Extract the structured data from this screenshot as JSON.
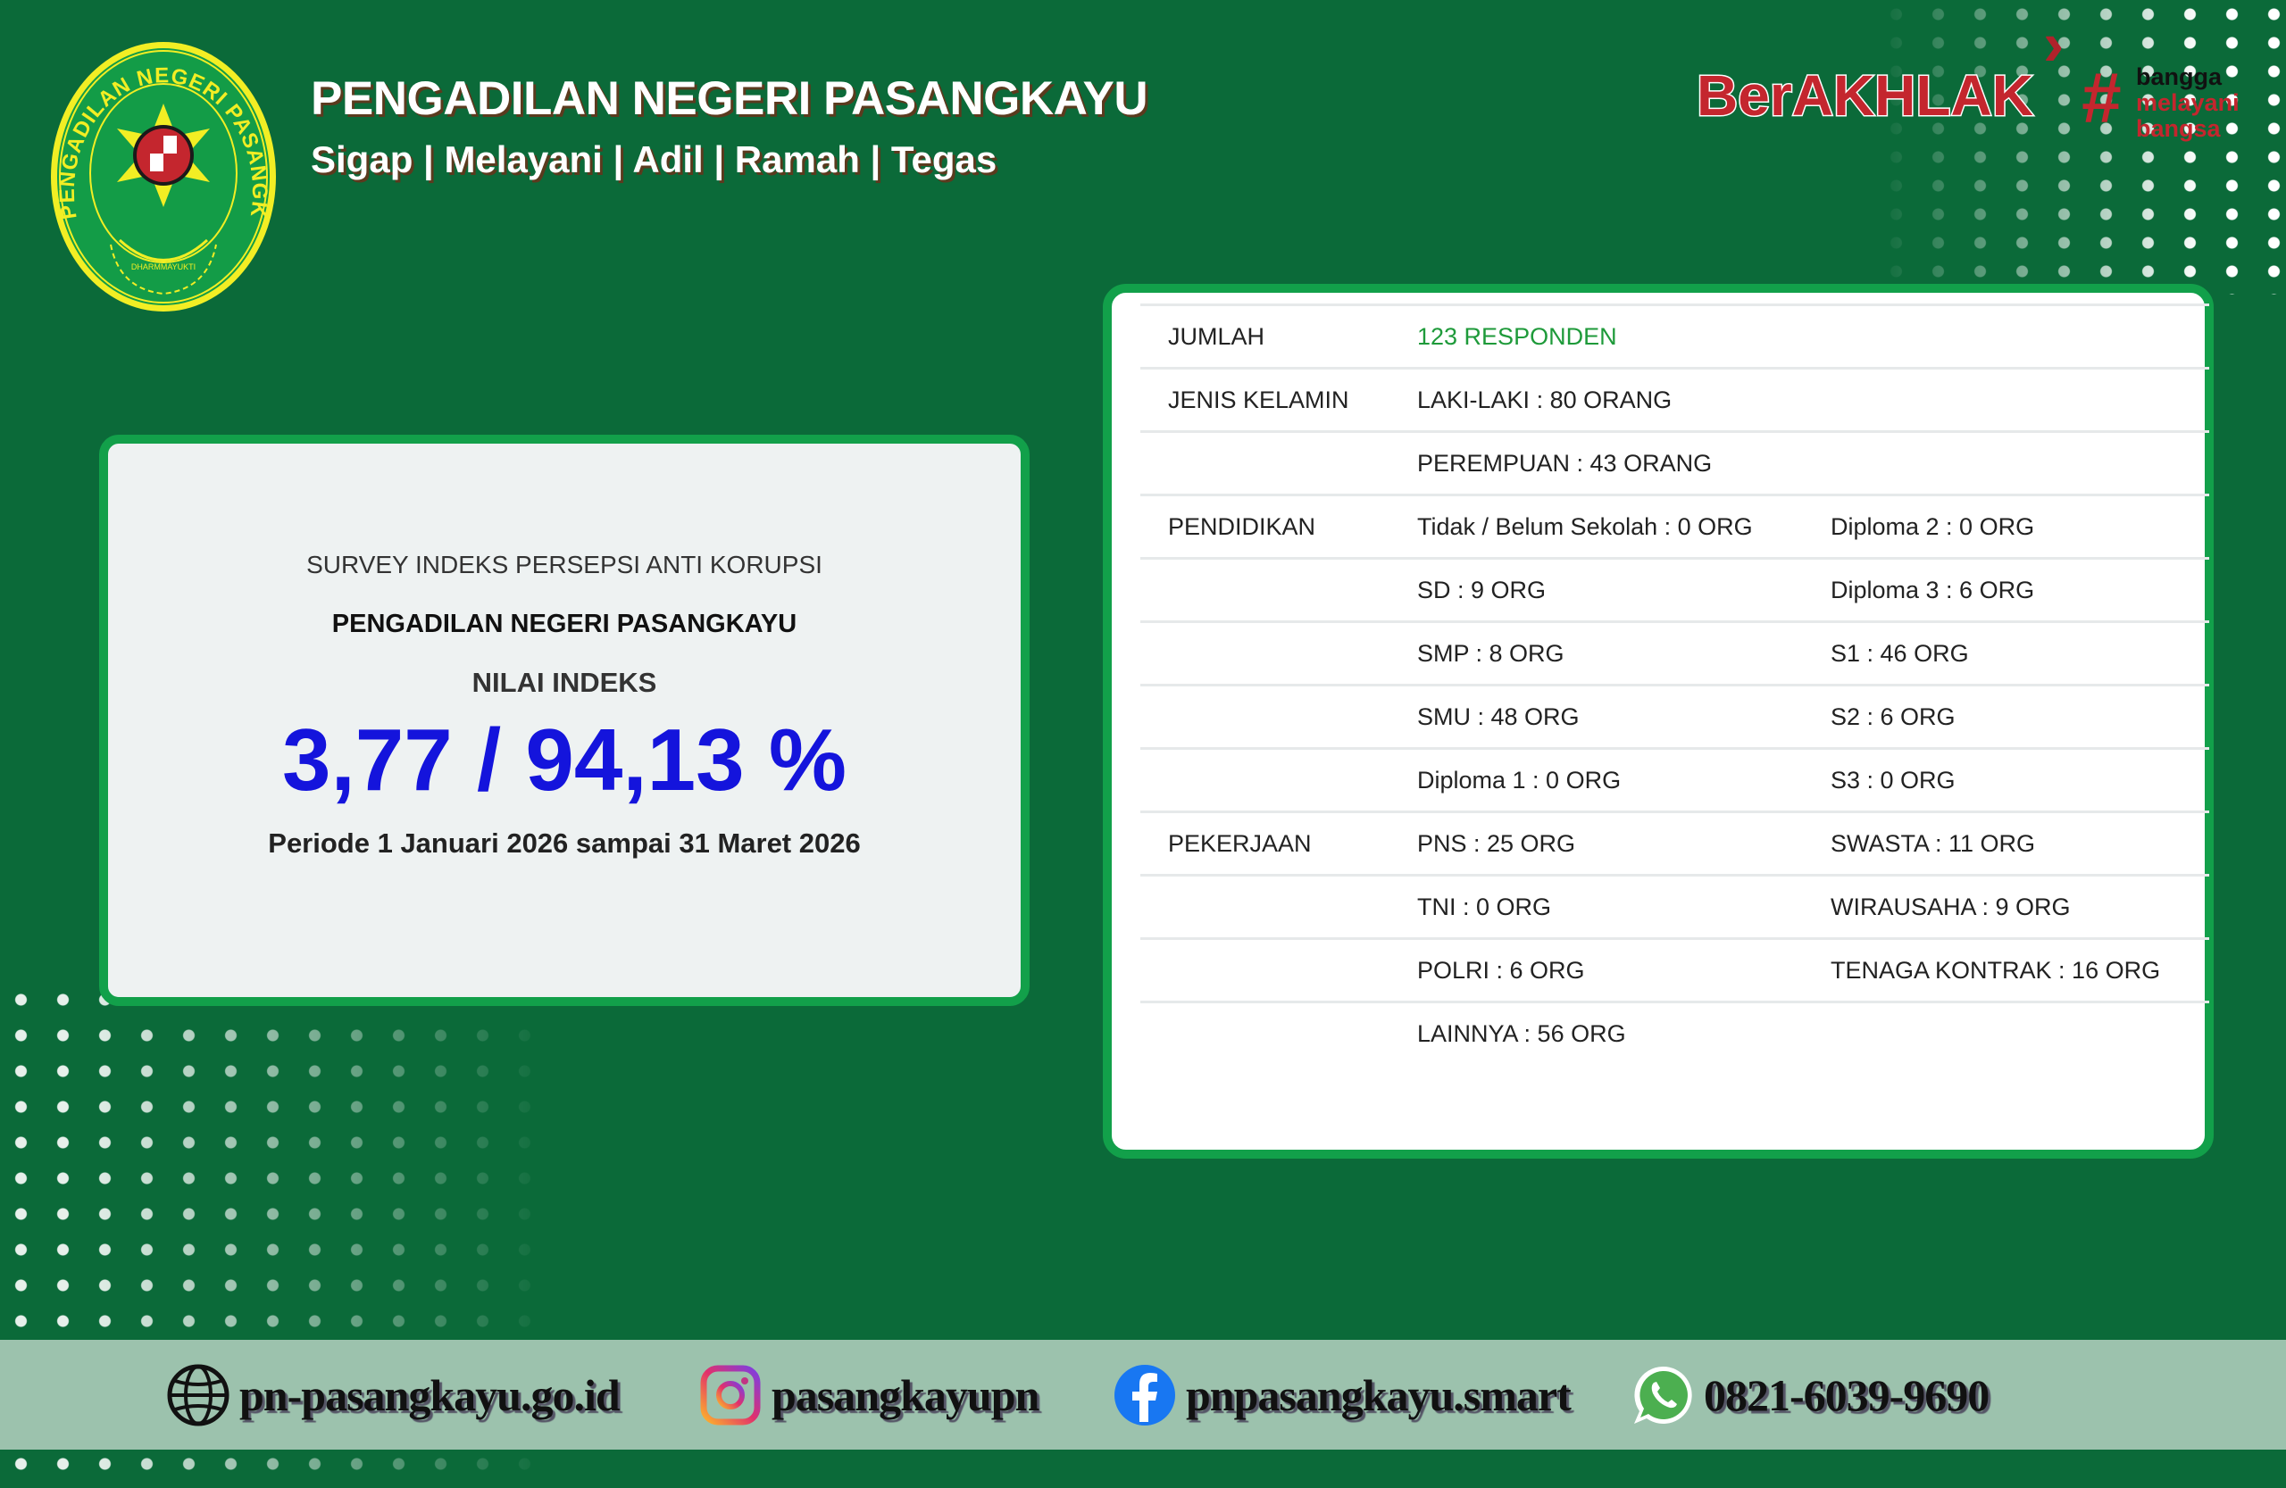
{
  "header": {
    "logo_text": "PENGADILAN NEGERI PASANGKAYU",
    "logo_motto": "DHARMMAYUKTI",
    "title": "PENGADILAN NEGERI PASANGKAYU",
    "subtitle": "Sigap | Melayani | Adil | Ramah | Tegas",
    "brand": "BerAKHLAK",
    "brand_tagline": [
      "bangga",
      "melayani",
      "bangsa"
    ],
    "brand_hash": "#"
  },
  "summary": {
    "survey_title": "SURVEY INDEKS PERSEPSI ANTI KORUPSI",
    "organization": "PENGADILAN NEGERI PASANGKAYU",
    "index_label": "NILAI INDEKS",
    "index_value": "3,77 / 94,13 %",
    "period": "Periode 1 Januari 2026 sampai 31 Maret 2026"
  },
  "respondents": {
    "rows": [
      [
        "JUMLAH",
        "123 RESPONDEN",
        ""
      ],
      [
        "JENIS KELAMIN",
        "LAKI-LAKI : 80 ORANG",
        ""
      ],
      [
        "",
        "PEREMPUAN : 43 ORANG",
        ""
      ],
      [
        "PENDIDIKAN",
        "Tidak / Belum Sekolah : 0 ORG",
        "Diploma 2 : 0 ORG"
      ],
      [
        "",
        "SD : 9 ORG",
        "Diploma 3 : 6 ORG"
      ],
      [
        "",
        "SMP : 8 ORG",
        "S1 : 46 ORG"
      ],
      [
        "",
        "SMU : 48 ORG",
        "S2 : 6 ORG"
      ],
      [
        "",
        "Diploma 1 : 0 ORG",
        "S3 : 0 ORG"
      ],
      [
        "PEKERJAAN",
        "PNS : 25 ORG",
        "SWASTA : 11 ORG"
      ],
      [
        "",
        "TNI : 0 ORG",
        "WIRAUSAHA : 9 ORG"
      ],
      [
        "",
        "POLRI : 6 ORG",
        "TENAGA KONTRAK : 16 ORG"
      ],
      [
        "",
        "LAINNYA : 56 ORG",
        ""
      ]
    ]
  },
  "footer": {
    "website": "pn-pasangkayu.go.id",
    "instagram": "pasangkayupn",
    "facebook": "pnpasangkayu.smart",
    "whatsapp": "0821-6039-9690"
  },
  "colors": {
    "background": "#0b6a39",
    "card_border": "#12a04a",
    "index_value": "#1414dc",
    "highlight": "#1e9a3a",
    "brand_red": "#c4262e",
    "footer_band": "#9cc2ad"
  }
}
